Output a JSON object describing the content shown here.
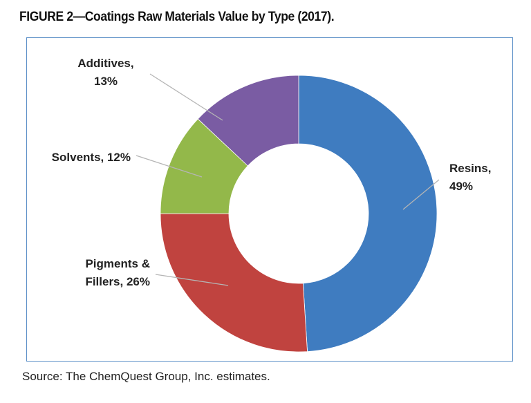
{
  "figure": {
    "title": "FIGURE 2—Coatings Raw Materials Value by Type (2017).",
    "source": "Source: The ChemQuest Group, Inc. estimates."
  },
  "chart_data": {
    "type": "pie",
    "variant": "donut",
    "title": "FIGURE 2—Coatings Raw Materials Value by Type (2017).",
    "unit": "%",
    "slices": [
      {
        "name": "Resins",
        "value": 49,
        "color": "#3f7cc0",
        "label_lines": [
          "Resins,",
          "49%"
        ]
      },
      {
        "name": "Pigments & Fillers",
        "value": 26,
        "color": "#c0433f",
        "label_lines": [
          "Pigments &",
          "Fillers, 26%"
        ]
      },
      {
        "name": "Solvents",
        "value": 12,
        "color": "#93b84a",
        "label_lines": [
          "Solvents, 12%"
        ]
      },
      {
        "name": "Additives",
        "value": 13,
        "color": "#7a5ca3",
        "label_lines": [
          "Additives,",
          "13%"
        ]
      }
    ],
    "start_angle": "12 o'clock",
    "direction": "clockwise",
    "legend": "none"
  }
}
